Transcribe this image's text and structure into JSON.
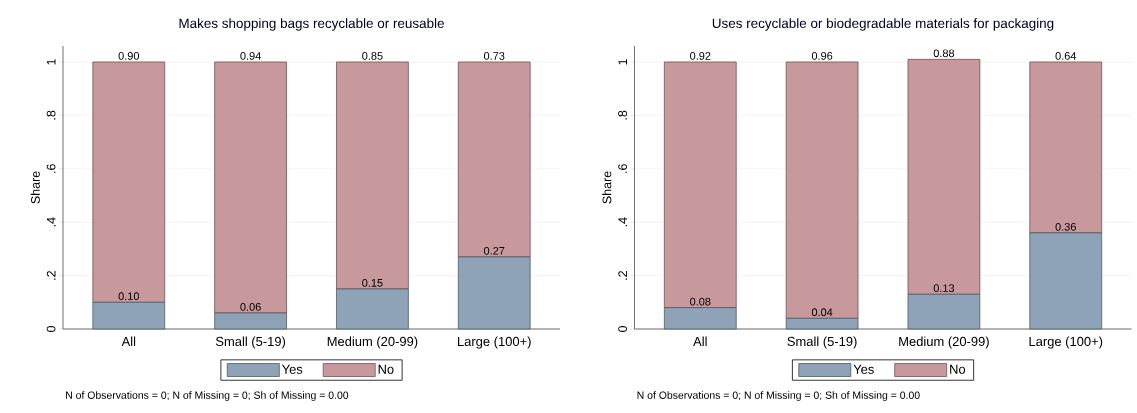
{
  "chart_data": [
    {
      "type": "bar",
      "stacked": true,
      "title": "Makes shopping bags recyclable or reusable",
      "ylabel": "Share",
      "categories": [
        "All",
        "Small (5-19)",
        "Medium (20-99)",
        "Large (100+)"
      ],
      "series": [
        {
          "name": "Yes",
          "color": "#8fa3b8",
          "values": [
            0.1,
            0.06,
            0.15,
            0.27
          ],
          "value_labels": [
            "0.10",
            "0.06",
            "0.15",
            "0.27"
          ]
        },
        {
          "name": "No",
          "color": "#c8999c",
          "values": [
            0.9,
            0.94,
            0.85,
            0.73
          ],
          "value_labels": [
            "0.90",
            "0.94",
            "0.85",
            "0.73"
          ]
        }
      ],
      "ylim": [
        0,
        1.06
      ],
      "yticks": [
        0,
        {
          "value": 0.2,
          "label": ".2"
        },
        {
          "value": 0.4,
          "label": ".4"
        },
        {
          "value": 0.6,
          "label": ".6"
        },
        {
          "value": 0.8,
          "label": ".8"
        },
        1
      ],
      "grid": "y",
      "legend": "bottom",
      "annotations": [
        "N of Observations = 0; N of Missing = 0; Sh of Missing = 0.00"
      ]
    },
    {
      "type": "bar",
      "stacked": true,
      "title": "Uses recyclable or biodegradable materials for packaging",
      "ylabel": "Share",
      "categories": [
        "All",
        "Small (5-19)",
        "Medium (20-99)",
        "Large (100+)"
      ],
      "series": [
        {
          "name": "Yes",
          "color": "#8fa3b8",
          "values": [
            0.08,
            0.04,
            0.13,
            0.36
          ],
          "value_labels": [
            "0.08",
            "0.04",
            "0.13",
            "0.36"
          ]
        },
        {
          "name": "No",
          "color": "#c8999c",
          "values": [
            0.92,
            0.96,
            0.88,
            0.64
          ],
          "value_labels": [
            "0.92",
            "0.96",
            "0.88",
            "0.64"
          ]
        }
      ],
      "ylim": [
        0,
        1.06
      ],
      "yticks": [
        0,
        {
          "value": 0.2,
          "label": ".2"
        },
        {
          "value": 0.4,
          "label": ".4"
        },
        {
          "value": 0.6,
          "label": ".6"
        },
        {
          "value": 0.8,
          "label": ".8"
        },
        1
      ],
      "grid": "y",
      "legend": "bottom",
      "annotations": [
        "N of Observations = 0; N of Missing = 0; Sh of Missing = 0.00"
      ]
    }
  ]
}
